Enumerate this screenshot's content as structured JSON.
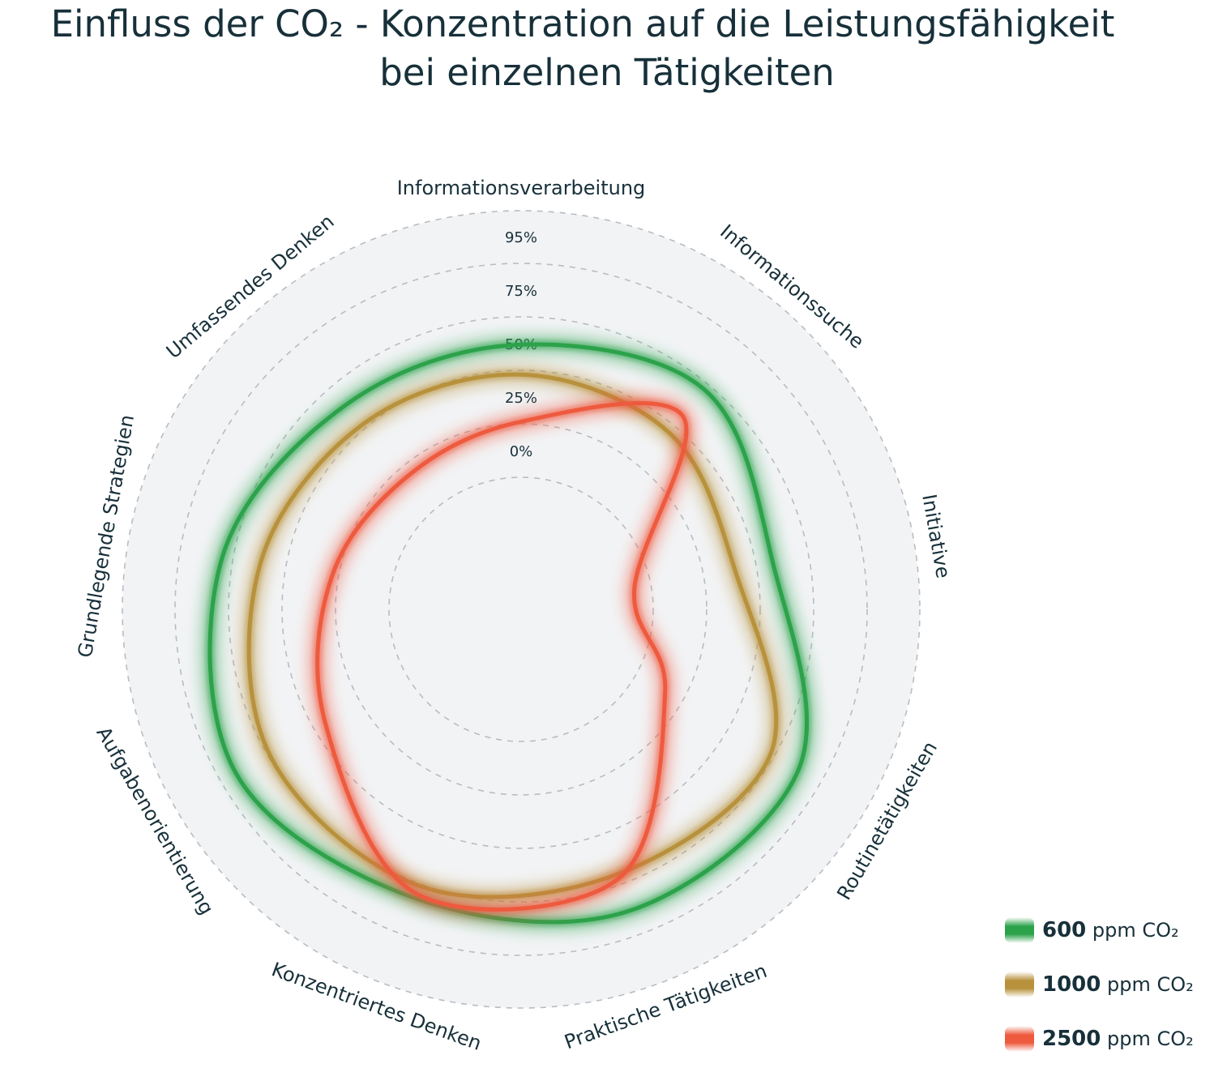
{
  "title": {
    "line1": "Einfluss der CO₂ - Konzentration auf die Leistungsfähigkeit",
    "line2": "bei einzelnen Tätigkeiten"
  },
  "chart_data": {
    "type": "radar",
    "title": "Einfluss der CO₂ - Konzentration auf die Leistungsfähigkeit bei einzelnen Tätigkeiten",
    "categories": [
      "Informationsverarbeitung",
      "Informationssuche",
      "Initiative",
      "Routinetätigkeiten",
      "Praktische Tätigkeiten",
      "Konzentriertes Denken",
      "Aufgabenorientierung",
      "Grundlegende Strategien",
      "Umfassendes Denken"
    ],
    "rings": [
      "0%",
      "25%",
      "50%",
      "75%",
      "95%"
    ],
    "range": [
      0,
      100
    ],
    "series": [
      {
        "name": "600 ppm CO₂",
        "value_label": "600",
        "unit_label": "ppm CO₂",
        "color": "#2ca24a",
        "values": [
          62,
          72,
          58,
          88,
          88,
          82,
          92,
          80,
          64
        ]
      },
      {
        "name": "1000 ppm CO₂",
        "value_label": "1000",
        "unit_label": "ppm CO₂",
        "color": "#b8913c",
        "values": [
          48,
          46,
          40,
          73,
          70,
          76,
          74,
          62,
          52
        ]
      },
      {
        "name": "2500 ppm CO₂",
        "value_label": "2500",
        "unit_label": "ppm CO₂",
        "color": "#ee5a3e",
        "values": [
          26,
          56,
          -8,
          16,
          72,
          80,
          44,
          28,
          20
        ]
      }
    ]
  }
}
